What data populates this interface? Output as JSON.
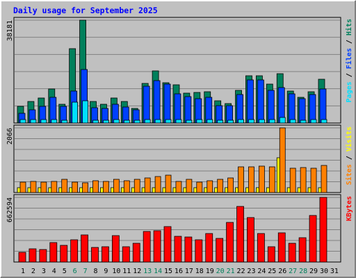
{
  "chart_data": [
    {
      "type": "bar",
      "title": "Daily usage for September 2025",
      "ylim": [
        0,
        38181
      ],
      "yticks": [
        38181
      ],
      "grid": true,
      "series": [
        {
          "name": "Hits",
          "color": "#00805c",
          "values": [
            6192,
            7998,
            9288,
            12642,
            6966,
            27606,
            38181,
            7998,
            6966,
            9288,
            7998,
            5418,
            14706,
            19350,
            14964,
            14190,
            11094,
            11352,
            11610,
            8256,
            7224,
            12126,
            17544,
            17544,
            14448,
            18318,
            11868,
            9546,
            11610,
            16254,
            null
          ]
        },
        {
          "name": "Files",
          "color": "#0040ff",
          "values": [
            3612,
            4902,
            6192,
            9546,
            6192,
            11868,
            19866,
            5676,
            5418,
            6966,
            5934,
            4902,
            13674,
            15738,
            14448,
            10836,
            9804,
            9030,
            9546,
            6450,
            6450,
            10578,
            15996,
            15996,
            12126,
            13158,
            10836,
            9030,
            10578,
            12642,
            null
          ]
        },
        {
          "name": "Pages",
          "color": "#00e0ff",
          "values": [
            1290,
            1290,
            1290,
            1290,
            1032,
            7740,
            8256,
            1032,
            1032,
            1290,
            1032,
            1032,
            1290,
            1290,
            1290,
            1290,
            1032,
            1290,
            1290,
            1032,
            1032,
            1290,
            1290,
            1290,
            1290,
            2064,
            1290,
            1032,
            1290,
            1290,
            null
          ]
        }
      ]
    },
    {
      "type": "bar",
      "ylim": [
        0,
        2066
      ],
      "yticks": [
        2066
      ],
      "grid": true,
      "series": [
        {
          "name": "Visits",
          "color": "#ffff00",
          "values": [
            155,
            155,
            155,
            155,
            155,
            155,
            155,
            155,
            155,
            155,
            155,
            155,
            155,
            155,
            155,
            155,
            155,
            155,
            155,
            155,
            155,
            155,
            155,
            155,
            155,
            1111,
            155,
            155,
            155,
            155,
            null
          ]
        },
        {
          "name": "Sites",
          "color": "#ff8000",
          "values": [
            333,
            355,
            333,
            355,
            422,
            333,
            311,
            377,
            355,
            422,
            377,
            422,
            466,
            511,
            555,
            355,
            422,
            333,
            377,
            422,
            466,
            821,
            821,
            844,
            821,
            2066,
            777,
            799,
            777,
            866,
            null
          ]
        }
      ]
    },
    {
      "type": "bar",
      "ylim": [
        0,
        662594
      ],
      "yticks": [
        662594
      ],
      "grid": true,
      "categories": [
        "1",
        "2",
        "3",
        "4",
        "5",
        "6",
        "7",
        "8",
        "9",
        "10",
        "11",
        "12",
        "13",
        "14",
        "15",
        "16",
        "17",
        "18",
        "19",
        "20",
        "21",
        "22",
        "23",
        "24",
        "25",
        "26",
        "27",
        "28",
        "29",
        "30",
        "31"
      ],
      "category_colors": [
        "#000000",
        "#000000",
        "#000000",
        "#000000",
        "#000000",
        "#00805c",
        "#00805c",
        "#000000",
        "#000000",
        "#000000",
        "#000000",
        "#000000",
        "#00805c",
        "#00805c",
        "#000000",
        "#000000",
        "#000000",
        "#000000",
        "#000000",
        "#00805c",
        "#00805c",
        "#000000",
        "#000000",
        "#000000",
        "#000000",
        "#000000",
        "#00805c",
        "#00805c",
        "#000000",
        "#000000",
        "#000000"
      ],
      "series": [
        {
          "name": "KBytes",
          "color": "#ff0000",
          "values": [
            99750,
            135375,
            128250,
            199500,
            171000,
            228000,
            277875,
            149625,
            156750,
            270750,
            156750,
            192375,
            313500,
            320625,
            363375,
            263625,
            256500,
            228000,
            292125,
            242250,
            406125,
            570000,
            456000,
            292125,
            156750,
            299250,
            192375,
            249375,
            477375,
            662594,
            null
          ]
        }
      ]
    }
  ]
}
